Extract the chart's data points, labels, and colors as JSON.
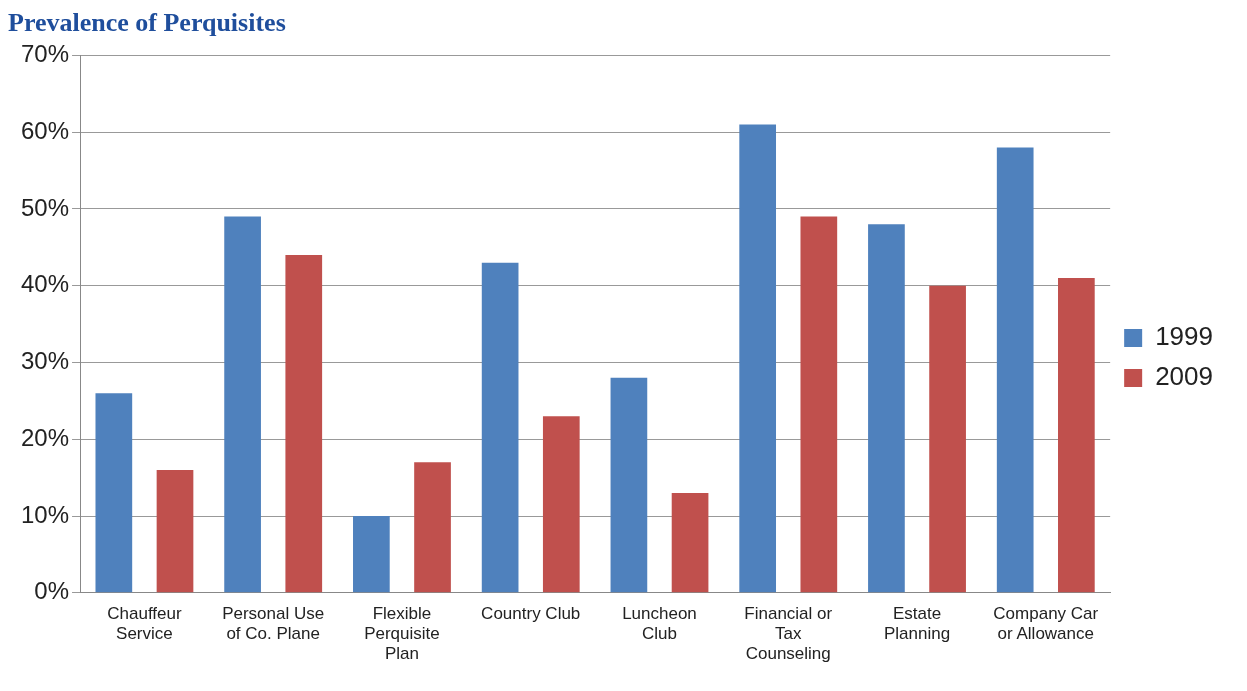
{
  "chart_data": {
    "type": "bar",
    "title": "Prevalence of Perquisites",
    "categories": [
      "Chauffeur Service",
      "Personal Use of Co. Plane",
      "Flexible Perquisite Plan",
      "Country Club",
      "Luncheon Club",
      "Financial or Tax Counseling",
      "Estate Planning",
      "Company Car or Allowance"
    ],
    "series": [
      {
        "name": "1999",
        "color": "#4f81bd",
        "values": [
          26,
          49,
          10,
          43,
          28,
          61,
          48,
          58
        ]
      },
      {
        "name": "2009",
        "color": "#c0504d",
        "values": [
          16,
          44,
          17,
          23,
          13,
          49,
          40,
          41
        ]
      }
    ],
    "ylim": [
      0,
      70
    ],
    "yticks": [
      {
        "value": 0,
        "label": "0%"
      },
      {
        "value": 10,
        "label": "10%"
      },
      {
        "value": 20,
        "label": "20%"
      },
      {
        "value": 30,
        "label": "30%"
      },
      {
        "value": 40,
        "label": "40%"
      },
      {
        "value": 50,
        "label": "50%"
      },
      {
        "value": 60,
        "label": "60%"
      },
      {
        "value": 70,
        "label": "70%"
      }
    ],
    "grid": "y",
    "legend": "right"
  }
}
